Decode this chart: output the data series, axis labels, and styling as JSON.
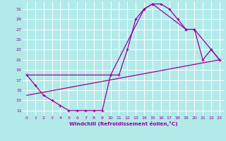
{
  "xlabel": "Windchill (Refroidissement éolien,°C)",
  "bg_color": "#b2eaea",
  "grid_color": "#ffffff",
  "line_color": "#990099",
  "xlim": [
    -0.5,
    23.5
  ],
  "ylim": [
    10,
    32.5
  ],
  "yticks": [
    11,
    13,
    15,
    17,
    19,
    21,
    23,
    25,
    27,
    29,
    31
  ],
  "xticks": [
    0,
    1,
    2,
    3,
    4,
    5,
    6,
    7,
    8,
    9,
    10,
    11,
    12,
    13,
    14,
    15,
    16,
    17,
    18,
    19,
    20,
    21,
    22,
    23
  ],
  "curve1_x": [
    0,
    1,
    2,
    3,
    4,
    5,
    6,
    7,
    8,
    9,
    10,
    11,
    12,
    13,
    14,
    15,
    16,
    17,
    18,
    19,
    20,
    21,
    22,
    23
  ],
  "curve1_y": [
    18,
    16,
    14,
    13,
    12,
    11,
    11,
    11,
    11,
    11,
    18,
    18,
    23,
    29,
    31,
    32,
    32,
    31,
    29,
    27,
    27,
    21,
    23,
    21
  ],
  "curve2_x": [
    0,
    10,
    14,
    15,
    19,
    20,
    23
  ],
  "curve2_y": [
    18,
    18,
    31,
    32,
    27,
    27,
    21
  ],
  "curve3_x": [
    0,
    23
  ],
  "curve3_y": [
    14,
    21
  ]
}
